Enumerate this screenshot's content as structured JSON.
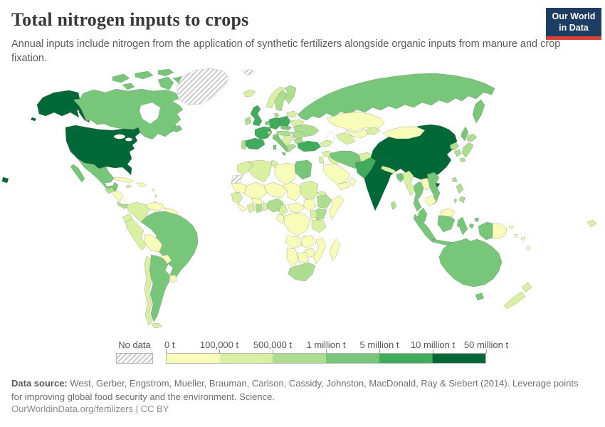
{
  "header": {
    "title": "Total nitrogen inputs to crops",
    "subtitle": "Annual inputs include nitrogen from the application of synthetic fertilizers alongside organic inputs from manure and crop fixation."
  },
  "logo": {
    "line1": "Our World",
    "line2": "in Data",
    "bg_color": "#1d3d63",
    "accent_color": "#dc3f34"
  },
  "legend": {
    "no_data_label": "No data",
    "tick_labels": [
      "0 t",
      "100,000 t",
      "500,000 t",
      "1 million t",
      "5 million t",
      "10 million t",
      "50 million t"
    ]
  },
  "footer": {
    "source_label": "Data source:",
    "source_text": " West, Gerber, Engstrom, Mueller, Brauman, Carlson, Cassidy, Johnston, MacDonald, Ray & Siebert (2014). Leverage points for improving global food security and the environment. Science.",
    "license_text": "OurWorldinData.org/fertilizers | CC BY"
  },
  "chart_data": {
    "type": "heatmap",
    "subtype": "world-choropleth-map",
    "title": "Total nitrogen inputs to crops",
    "unit": "tonnes of nitrogen",
    "legend_position": "bottom",
    "no_data_style": "diagonal-hatch",
    "bin_edges_labels": [
      "0 t",
      "100,000 t",
      "500,000 t",
      "1 million t",
      "5 million t",
      "10 million t",
      "50 million t"
    ],
    "bin_labels": [
      "0–100,000 t",
      "100,000–500,000 t",
      "500,000 t–1 million t",
      "1–5 million t",
      "5–10 million t",
      "10–50 million t"
    ],
    "bin_colors": [
      "#f7fcb9",
      "#d9f0a3",
      "#addd8e",
      "#78c679",
      "#41ab5d",
      "#006837"
    ],
    "country_bins": {
      "united-states": 6,
      "map-fragment": 6,
      "canada": 4,
      "greenland": 0,
      "svalbard": 0,
      "mexico": 4,
      "guatemala": 3,
      "honduras-nicaragua": 1,
      "costa-rica-panama": 3,
      "cuba": 1,
      "jamaica": 2,
      "hispaniola": 1,
      "lesser-antilles": 1,
      "venezuela": 1,
      "colombia": 2,
      "guyanas": 1,
      "ecuador": 2,
      "peru": 2,
      "brazil": 4,
      "bolivia": 1,
      "paraguay": 1,
      "uruguay": 1,
      "argentina": 4,
      "chile": 2,
      "tierra-del-fuego": 2,
      "iceland": 2,
      "united-kingdom": 5,
      "ireland": 3,
      "norway": 2,
      "sweden": 3,
      "finland": 3,
      "denmark": 3,
      "baltics": 2,
      "belarus": 2,
      "ukraine": 3,
      "poland": 5,
      "germany": 5,
      "benelux": 4,
      "france": 5,
      "spain": 5,
      "portugal": 3,
      "italy": 4,
      "switzerland": 3,
      "czechia-slovakia": 4,
      "austria-hungary": 3,
      "romania": 3,
      "balkans": 2,
      "bulgaria": 3,
      "greece": 3,
      "russia": 4,
      "kazakhstan": 1,
      "uzbekistan": 1,
      "turkmenistan": 2,
      "kyrgyzstan-tajikistan": 2,
      "caucasus": 2,
      "turkey": 5,
      "syria": 2,
      "iraq": 2,
      "israel-jordan": 2,
      "saudi-arabia": 1,
      "yemen": 1,
      "oman": 1,
      "iran": 4,
      "afghanistan": 2,
      "pakistan": 5,
      "india": 6,
      "nepal": 2,
      "bangladesh": 4,
      "sri-lanka": 3,
      "china": 6,
      "mongolia": 1,
      "north-korea": 3,
      "south-korea": 3,
      "japan": 3,
      "taiwan": 3,
      "myanmar": 2,
      "thailand": 4,
      "laos": 1,
      "vietnam": 4,
      "cambodia": 1,
      "malaysia": 4,
      "malaysia-borneo": 1,
      "indonesia": 4,
      "philippines": 3,
      "papua-new-guinea": 1,
      "png-islands": 1,
      "solomon-islands": 1,
      "vanuatu": 1,
      "fiji": 2,
      "timor": 1,
      "australia": 4,
      "tasmania": 4,
      "new-zealand": 2,
      "morocco": 2,
      "western-sahara": 0,
      "algeria": 2,
      "tunisia": 2,
      "libya": 1,
      "egypt": 4,
      "mauritania": 1,
      "mali": 1,
      "niger": 1,
      "chad": 1,
      "sudan": 2,
      "eritrea": 2,
      "senegal-guinea": 2,
      "sierra-leone-liberia": 1,
      "ivory-coast": 2,
      "ghana": 3,
      "togo-benin": 2,
      "burkina-faso": 1,
      "nigeria": 3,
      "cameroon": 2,
      "central-african-republic": 1,
      "south-sudan": 1,
      "ethiopia": 3,
      "somalia": 1,
      "kenya": 3,
      "uganda": 2,
      "drc": 1,
      "gabon-congo": 1,
      "tanzania": 2,
      "angola": 1,
      "zambia": 1,
      "mozambique": 1,
      "zimbabwe": 1,
      "botswana": 1,
      "namibia": 1,
      "south-africa": 3,
      "madagascar": 1
    }
  }
}
